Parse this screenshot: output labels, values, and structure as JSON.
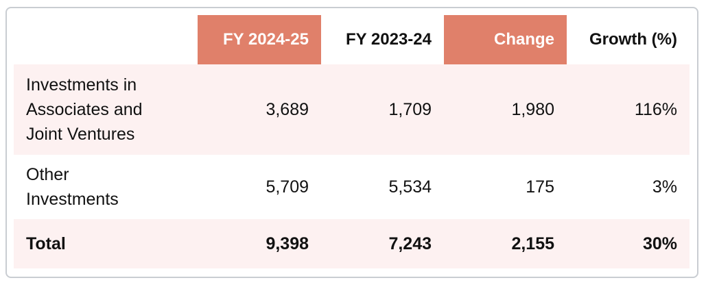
{
  "table": {
    "header": [
      "FY 2024-25",
      "FY 2023-24",
      "Change",
      "Growth (%)"
    ],
    "rows": [
      [
        "Investments in Associates and Joint Ventures",
        "3,689",
        "1,709",
        "1,980",
        "116%"
      ],
      [
        "Other Investments",
        "5,709",
        "5,534",
        "175",
        "3%"
      ],
      [
        "Total",
        "9,398",
        "7,243",
        "2,155",
        "30%"
      ]
    ]
  }
}
